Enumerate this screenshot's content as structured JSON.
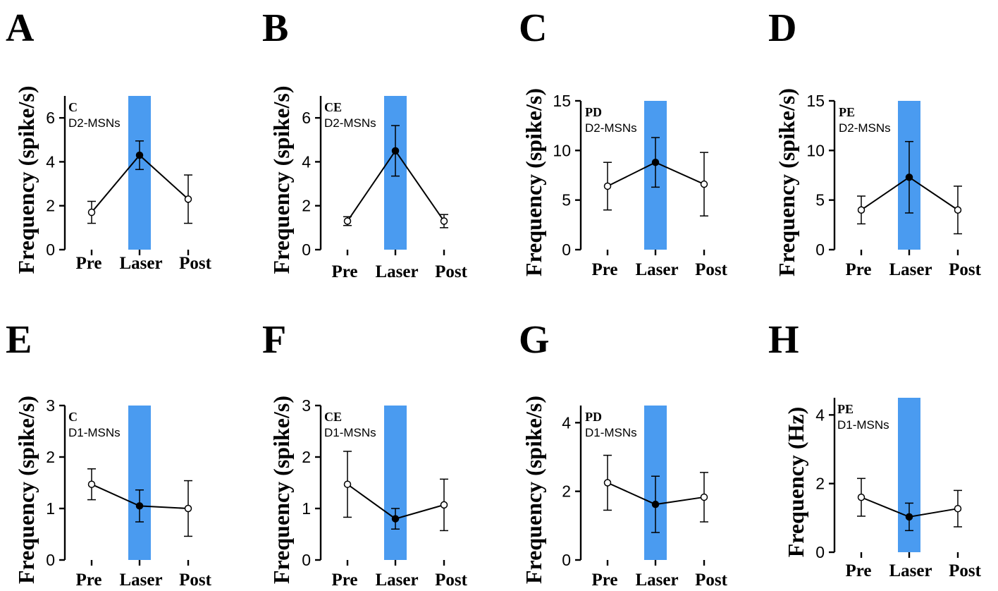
{
  "figure": {
    "xtick_labels": [
      "Pre",
      "Laser",
      "Post"
    ]
  },
  "colors": {
    "laser": "#4a9bf0",
    "ink": "#000000"
  },
  "chart_data": [
    {
      "id": "A",
      "type": "line",
      "region": "C",
      "cell_type": "D2-MSNs",
      "ylabel": "Frequency (spike/s)",
      "categories": [
        "Pre",
        "Laser",
        "Post"
      ],
      "values": [
        1.7,
        4.3,
        2.3
      ],
      "errors": [
        0.5,
        0.65,
        1.1
      ],
      "ylim": [
        0,
        7
      ],
      "yticks": [
        0,
        2,
        4,
        6
      ],
      "ytick_labels": [
        "0",
        "2",
        "4",
        "6"
      ],
      "highlight": "Laser"
    },
    {
      "id": "B",
      "type": "line",
      "region": "CE",
      "cell_type": "D2-MSNs",
      "ylabel": "Frequency (spike/s)",
      "categories": [
        "Pre",
        "Laser",
        "Post"
      ],
      "values": [
        1.3,
        4.5,
        1.3
      ],
      "errors": [
        0.2,
        1.15,
        0.3
      ],
      "ylim": [
        0,
        7
      ],
      "yticks": [
        0,
        2,
        4,
        6
      ],
      "ytick_labels": [
        "0",
        "2",
        "4",
        "6"
      ],
      "highlight": "Laser"
    },
    {
      "id": "C",
      "type": "line",
      "region": "PD",
      "cell_type": "D2-MSNs",
      "ylabel": "Frequency (spike/s)",
      "categories": [
        "Pre",
        "Laser",
        "Post"
      ],
      "values": [
        6.4,
        8.8,
        6.6
      ],
      "errors": [
        2.4,
        2.5,
        3.2
      ],
      "ylim": [
        0,
        15
      ],
      "yticks": [
        0,
        5,
        10,
        15
      ],
      "ytick_labels": [
        "0",
        "5",
        "10",
        "15"
      ],
      "highlight": "Laser"
    },
    {
      "id": "D",
      "type": "line",
      "region": "PE",
      "cell_type": "D2-MSNs",
      "ylabel": "Frequency (spike/s)",
      "categories": [
        "Pre",
        "Laser",
        "Post"
      ],
      "values": [
        4.0,
        7.3,
        4.0
      ],
      "errors": [
        1.4,
        3.6,
        2.4
      ],
      "ylim": [
        0,
        15
      ],
      "yticks": [
        0,
        5,
        10,
        15
      ],
      "ytick_labels": [
        "0",
        "5",
        "10",
        "15"
      ],
      "highlight": "Laser"
    },
    {
      "id": "E",
      "type": "line",
      "region": "C",
      "cell_type": "D1-MSNs",
      "ylabel": "Frequency (spike/s)",
      "categories": [
        "Pre",
        "Laser",
        "Post"
      ],
      "values": [
        1.47,
        1.05,
        1.0
      ],
      "errors": [
        0.3,
        0.31,
        0.54
      ],
      "ylim": [
        0,
        3
      ],
      "yticks": [
        0,
        1,
        2,
        3
      ],
      "ytick_labels": [
        "0",
        "1",
        "2",
        "3"
      ],
      "highlight": "Laser"
    },
    {
      "id": "F",
      "type": "line",
      "region": "CE",
      "cell_type": "D1-MSNs",
      "ylabel": "Frequency (spike/s)",
      "categories": [
        "Pre",
        "Laser",
        "Post"
      ],
      "values": [
        1.47,
        0.8,
        1.07
      ],
      "errors": [
        0.64,
        0.2,
        0.5
      ],
      "ylim": [
        0,
        3
      ],
      "yticks": [
        0,
        1,
        2,
        3
      ],
      "ytick_labels": [
        "0",
        "1",
        "2",
        "3"
      ],
      "highlight": "Laser"
    },
    {
      "id": "G",
      "type": "line",
      "region": "PD",
      "cell_type": "D1-MSNs",
      "ylabel": "Frequency (spike/s)",
      "categories": [
        "Pre",
        "Laser",
        "Post"
      ],
      "values": [
        2.25,
        1.62,
        1.83
      ],
      "errors": [
        0.8,
        0.82,
        0.72
      ],
      "ylim": [
        0,
        4.5
      ],
      "yticks": [
        0,
        2,
        4
      ],
      "ytick_labels": [
        "0",
        "2",
        "4"
      ],
      "highlight": "Laser"
    },
    {
      "id": "H",
      "type": "line",
      "region": "PE",
      "cell_type": "D1-MSNs",
      "ylabel": "Frequency (Hz)",
      "categories": [
        "Pre",
        "Laser",
        "Post"
      ],
      "values": [
        1.6,
        1.03,
        1.27
      ],
      "errors": [
        0.55,
        0.4,
        0.53
      ],
      "ylim": [
        0,
        4.5
      ],
      "yticks": [
        0,
        2,
        4
      ],
      "ytick_labels": [
        "0",
        "2",
        "4"
      ],
      "highlight": "Laser"
    }
  ]
}
